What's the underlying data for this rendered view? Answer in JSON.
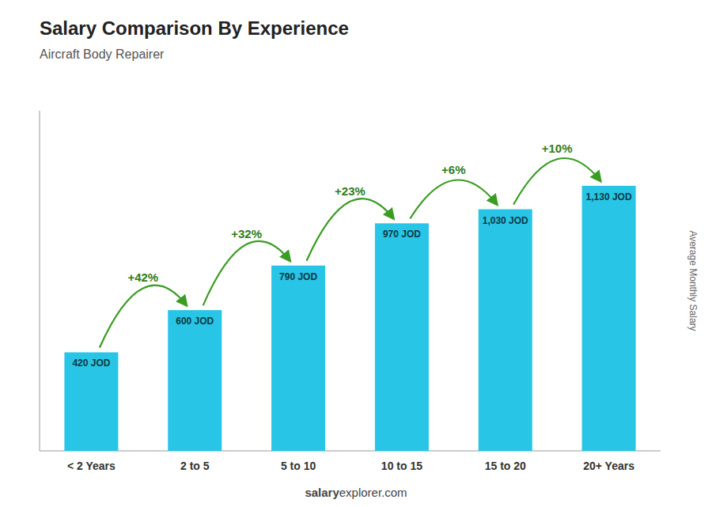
{
  "chart_data": {
    "type": "bar",
    "title": "Salary Comparison By Experience",
    "subtitle": "Aircraft Body Repairer",
    "ylabel": "Average Monthly Salary",
    "categories": [
      "< 2 Years",
      "2 to 5",
      "5 to 10",
      "10 to 15",
      "15 to 20",
      "20+ Years"
    ],
    "values": [
      420,
      600,
      790,
      970,
      1030,
      1130
    ],
    "value_labels": [
      "420 JOD",
      "600 JOD",
      "790 JOD",
      "970 JOD",
      "1,030 JOD",
      "1,130 JOD"
    ],
    "data_labels": true,
    "annotations": [
      "+42%",
      "+32%",
      "+23%",
      "+6%",
      "+10%"
    ],
    "watermark": [
      "salary",
      "explorer.com"
    ],
    "color": "#29c5e6",
    "ylim": [
      0,
      1450
    ],
    "grid": false,
    "tick_labels": "x"
  }
}
